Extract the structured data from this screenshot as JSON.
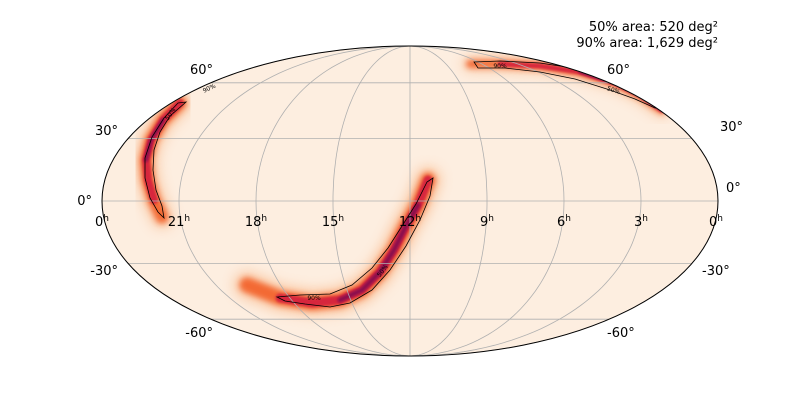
{
  "chart_data": {
    "type": "heatmap",
    "projection": "mollweide",
    "annotations": {
      "area_50": "50% area: 520 deg²",
      "area_90": "90% area: 1,629 deg²"
    },
    "ra_ticks": [
      {
        "hours": 0,
        "label": "0"
      },
      {
        "hours": 21,
        "label": "21"
      },
      {
        "hours": 18,
        "label": "18"
      },
      {
        "hours": 15,
        "label": "15"
      },
      {
        "hours": 12,
        "label": "12"
      },
      {
        "hours": 9,
        "label": "9"
      },
      {
        "hours": 6,
        "label": "6"
      },
      {
        "hours": 3,
        "label": "3"
      },
      {
        "hours": 0,
        "label": "0"
      }
    ],
    "ra_unit": "h",
    "dec_ticks": [
      {
        "dec": 60,
        "label": "60°"
      },
      {
        "dec": 30,
        "label": "30°"
      },
      {
        "dec": 0,
        "label": "0°"
      },
      {
        "dec": -30,
        "label": "-30°"
      },
      {
        "dec": -60,
        "label": "-60°"
      }
    ],
    "contour_labels": [
      "50%",
      "90%"
    ],
    "grid": true,
    "colors": {
      "background": "#fdeee0",
      "low": "#f9b88a",
      "mid": "#f3652f",
      "high": "#d7263d",
      "peak": "#8b0a4e",
      "grid": "#b0b0b0",
      "contour": "#000000"
    }
  }
}
